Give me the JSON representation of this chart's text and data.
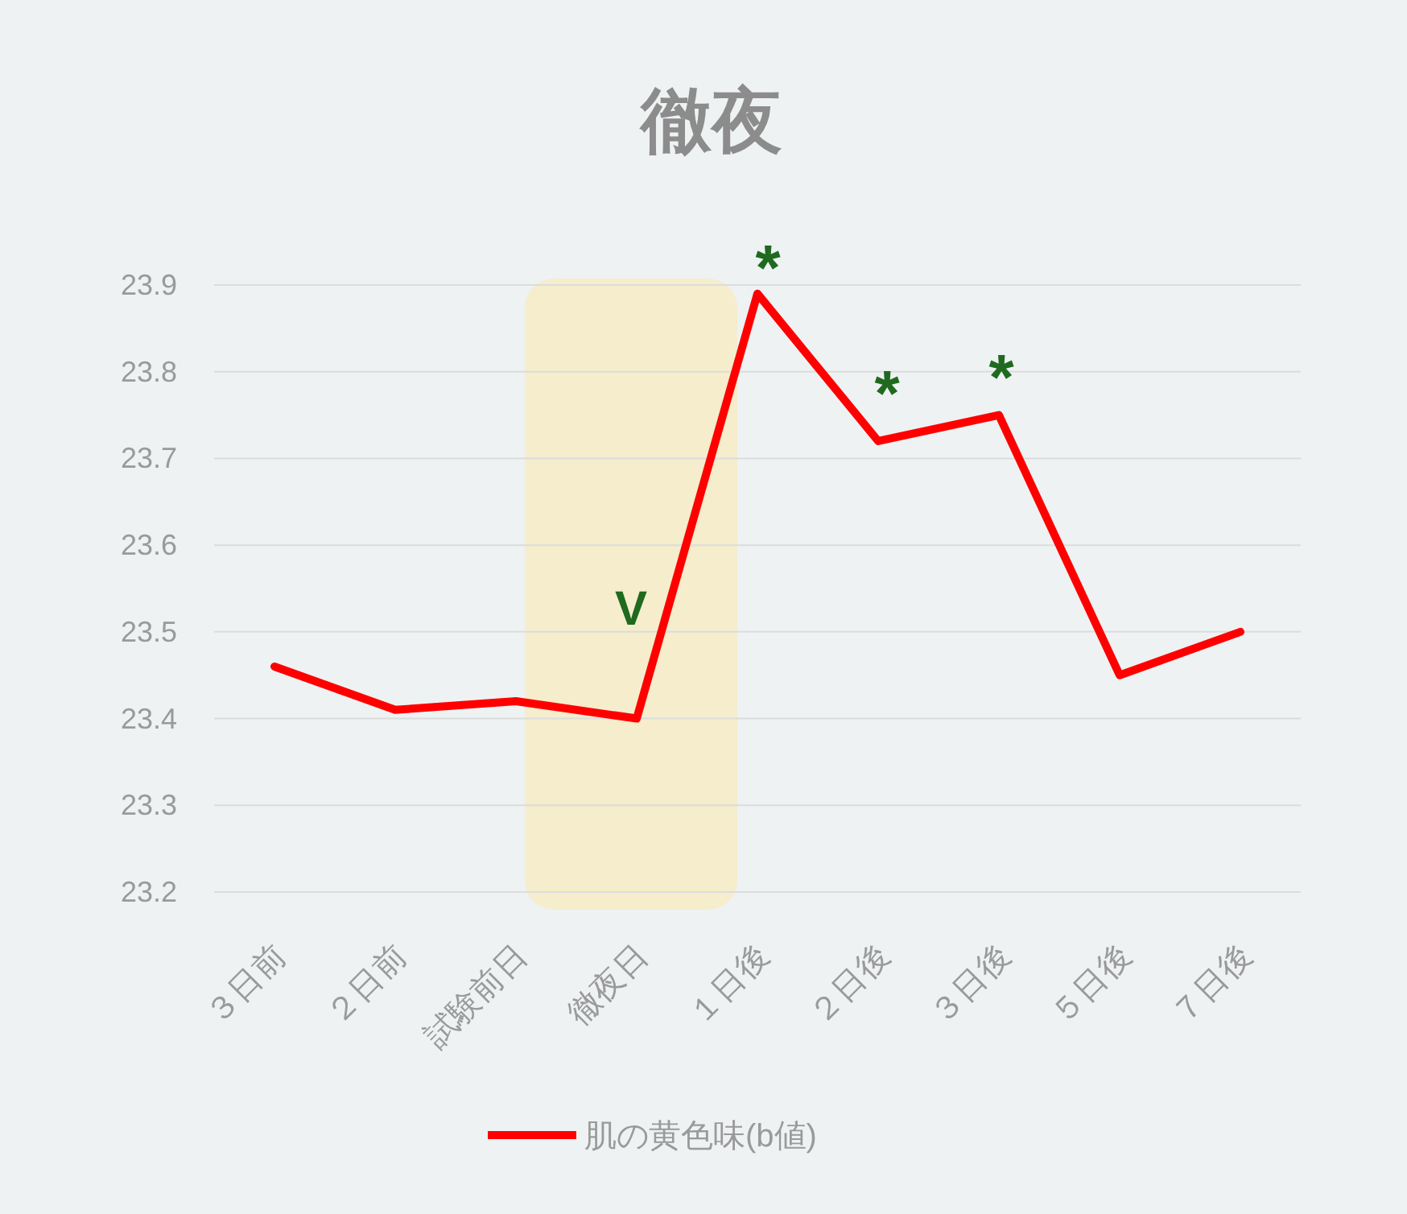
{
  "chart_data": {
    "type": "line",
    "title": "徹夜",
    "categories": [
      "３日前",
      "２日前",
      "試験前日",
      "徹夜日",
      "１日後",
      "２日後",
      "３日後",
      "５日後",
      "７日後"
    ],
    "series": [
      {
        "name": "肌の黄色味(b値)",
        "color": "#ff0000",
        "values": [
          23.46,
          23.41,
          23.42,
          23.4,
          23.89,
          23.72,
          23.75,
          23.45,
          23.5
        ]
      }
    ],
    "ylim": [
      23.2,
      23.9
    ],
    "yticks": [
      23.2,
      23.3,
      23.4,
      23.5,
      23.6,
      23.7,
      23.8,
      23.9
    ],
    "grid": "y",
    "legend": "bottom",
    "marker": "none",
    "line_style": "solid",
    "annotations": [
      "V",
      "*",
      "*",
      "*"
    ]
  }
}
